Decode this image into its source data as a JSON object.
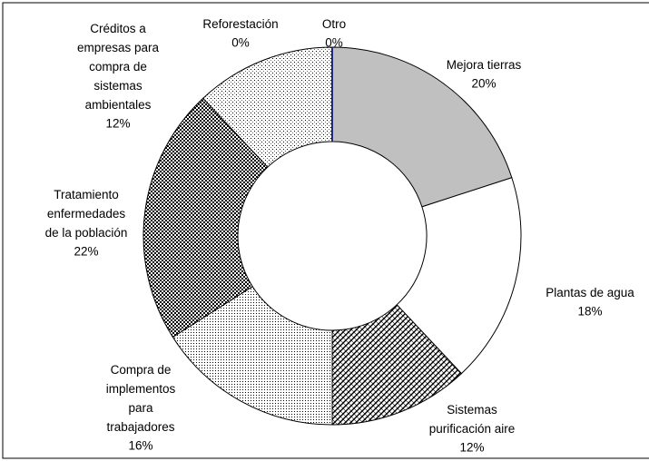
{
  "chart_data": {
    "type": "donut",
    "categories": [
      "Mejora tierras",
      "Plantas de agua",
      "Sistemas\npurificación aire",
      "Compra de\nimplementos\npara\ntrabajadores",
      "Tratamiento\nenfermedades\nde la población",
      "Créditos a\nempresas para\ncompra de\nsistemas\nambientales",
      "Reforestación",
      "Otro"
    ],
    "values": [
      20,
      18,
      12,
      16,
      22,
      12,
      0,
      0
    ],
    "value_labels": [
      "20%",
      "18%",
      "12%",
      "16%",
      "22%",
      "12%",
      "0%",
      "0%"
    ]
  }
}
